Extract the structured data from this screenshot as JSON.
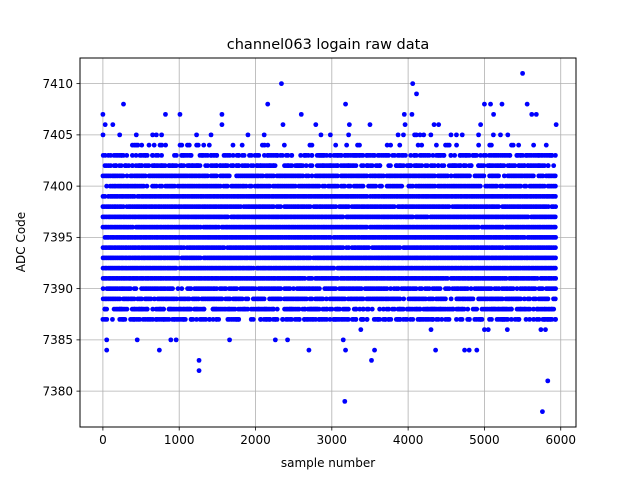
{
  "chart_data": {
    "type": "scatter",
    "title": "channel063 logain raw data",
    "xlabel": "sample number",
    "ylabel": "ADC Code",
    "xlim": [
      -300,
      6200
    ],
    "ylim": [
      7376.5,
      7412.5
    ],
    "xticks": [
      "0",
      "1000",
      "2000",
      "3000",
      "4000",
      "5000",
      "6000"
    ],
    "yticks": [
      "7380",
      "7385",
      "7390",
      "7395",
      "7400",
      "7405",
      "7410"
    ],
    "grid": true,
    "marker_color": "#0000ff",
    "x_range": [
      0,
      5950
    ],
    "dense_band": [
      7389,
      7401
    ],
    "series": [
      {
        "name": "",
        "points": [
          [
            2340,
            7410
          ],
          [
            4060,
            7410
          ],
          [
            5500,
            7411
          ],
          [
            4110,
            7409
          ],
          [
            270,
            7408
          ],
          [
            2160,
            7408
          ],
          [
            3180,
            7408
          ],
          [
            5000,
            7408
          ],
          [
            5080,
            7408
          ],
          [
            5230,
            7408
          ],
          [
            5560,
            7408
          ],
          [
            0,
            7407
          ],
          [
            820,
            7407
          ],
          [
            1010,
            7407
          ],
          [
            1560,
            7407
          ],
          [
            2600,
            7407
          ],
          [
            3950,
            7407
          ],
          [
            4050,
            7407
          ],
          [
            5120,
            7407
          ],
          [
            5620,
            7407
          ],
          [
            5680,
            7407
          ],
          [
            30,
            7406
          ],
          [
            130,
            7406
          ],
          [
            1560,
            7406
          ],
          [
            2360,
            7406
          ],
          [
            2790,
            7406
          ],
          [
            3230,
            7406
          ],
          [
            3500,
            7406
          ],
          [
            3960,
            7406
          ],
          [
            4340,
            7406
          ],
          [
            4400,
            7406
          ],
          [
            4950,
            7406
          ],
          [
            5940,
            7406
          ],
          [
            3380,
            7386
          ],
          [
            4300,
            7386
          ],
          [
            5000,
            7386
          ],
          [
            5050,
            7386
          ],
          [
            5300,
            7386
          ],
          [
            5740,
            7386
          ],
          [
            5800,
            7386
          ],
          [
            50,
            7385
          ],
          [
            450,
            7385
          ],
          [
            890,
            7385
          ],
          [
            960,
            7385
          ],
          [
            1660,
            7385
          ],
          [
            2260,
            7385
          ],
          [
            2420,
            7385
          ],
          [
            3150,
            7385
          ],
          [
            50,
            7384
          ],
          [
            740,
            7384
          ],
          [
            2700,
            7384
          ],
          [
            3180,
            7384
          ],
          [
            3560,
            7384
          ],
          [
            4360,
            7384
          ],
          [
            4740,
            7384
          ],
          [
            4800,
            7384
          ],
          [
            4900,
            7384
          ],
          [
            1260,
            7383
          ],
          [
            3520,
            7383
          ],
          [
            1260,
            7382
          ],
          [
            5830,
            7381
          ],
          [
            3170,
            7379
          ],
          [
            5760,
            7378
          ]
        ]
      }
    ]
  }
}
